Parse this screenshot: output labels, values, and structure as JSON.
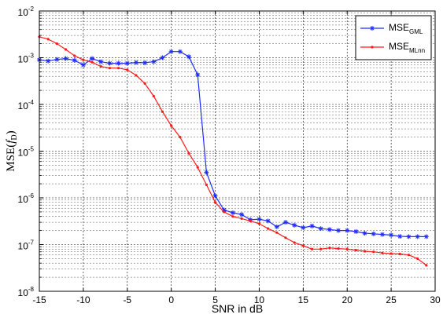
{
  "chart_data": {
    "type": "line",
    "xlabel": "SNR in dB",
    "ylabel": {
      "base": "MSE(",
      "var": "f",
      "sub": "D",
      "close": ")"
    },
    "xlim": [
      -15,
      30
    ],
    "ylim_log10": [
      -8,
      -2
    ],
    "yscale": "log",
    "grid": true,
    "legend_position": "top-right",
    "x_ticks": [
      "-15",
      "-10",
      "-5",
      "0",
      "5",
      "10",
      "15",
      "20",
      "25",
      "30"
    ],
    "y_ticks": [
      {
        "base": "10",
        "exp": "-8"
      },
      {
        "base": "10",
        "exp": "-7"
      },
      {
        "base": "10",
        "exp": "-6"
      },
      {
        "base": "10",
        "exp": "-5"
      },
      {
        "base": "10",
        "exp": "-4"
      },
      {
        "base": "10",
        "exp": "-3"
      },
      {
        "base": "10",
        "exp": "-2"
      }
    ],
    "series": [
      {
        "name": "MSE",
        "name_sub": "GML",
        "color": "#1f2bff",
        "marker": "star",
        "x": [
          -15,
          -14,
          -13,
          -12,
          -11,
          -10,
          -9,
          -8,
          -7,
          -6,
          -5,
          -4,
          -3,
          -2,
          -1,
          0,
          1,
          2,
          3,
          4,
          5,
          6,
          7,
          8,
          9,
          10,
          11,
          12,
          13,
          14,
          15,
          16,
          17,
          18,
          19,
          20,
          21,
          22,
          23,
          24,
          25,
          26,
          27,
          28,
          29
        ],
        "y": [
          0.0009,
          0.00085,
          0.00092,
          0.00096,
          0.00088,
          0.0007,
          0.00096,
          0.00082,
          0.00076,
          0.00076,
          0.00076,
          0.00079,
          0.00078,
          0.00082,
          0.001,
          0.00135,
          0.00135,
          0.00105,
          0.00043,
          3.5e-06,
          1.1e-06,
          5.5e-07,
          4.8e-07,
          4.4e-07,
          3.4e-07,
          3.5e-07,
          3.2e-07,
          2.4e-07,
          3e-07,
          2.6e-07,
          2.3e-07,
          2.5e-07,
          2.2e-07,
          2.1e-07,
          2e-07,
          2e-07,
          1.9e-07,
          1.75e-07,
          1.7e-07,
          1.65e-07,
          1.6e-07,
          1.5e-07,
          1.48e-07,
          1.48e-07,
          1.48e-07
        ]
      },
      {
        "name": "MSE",
        "name_sub": "MLnn",
        "color": "#ff1a1a",
        "marker": "dot",
        "x": [
          -15,
          -14,
          -13,
          -12,
          -11,
          -10,
          -9,
          -8,
          -7,
          -6,
          -5,
          -4,
          -3,
          -2,
          -1,
          0,
          1,
          2,
          3,
          4,
          5,
          6,
          7,
          8,
          9,
          10,
          11,
          12,
          13,
          14,
          15,
          16,
          17,
          18,
          19,
          20,
          21,
          22,
          23,
          24,
          25,
          26,
          27,
          28,
          29
        ],
        "y": [
          0.0028,
          0.0025,
          0.002,
          0.0015,
          0.0011,
          0.0009,
          0.0008,
          0.00065,
          0.0006,
          0.0006,
          0.00055,
          0.00042,
          0.00028,
          0.00015,
          7e-05,
          3.5e-05,
          2e-05,
          9e-06,
          4.5e-06,
          1.9e-06,
          8e-07,
          5e-07,
          4e-07,
          3.6e-07,
          3.2e-07,
          2.8e-07,
          2.2e-07,
          1.8e-07,
          1.4e-07,
          1.1e-07,
          9.5e-08,
          8e-08,
          8e-08,
          8.5e-08,
          8.2e-08,
          8e-08,
          7.6e-08,
          7.2e-08,
          7e-08,
          6.6e-08,
          6.4e-08,
          6.3e-08,
          6e-08,
          5e-08,
          3.6e-08
        ]
      }
    ]
  }
}
